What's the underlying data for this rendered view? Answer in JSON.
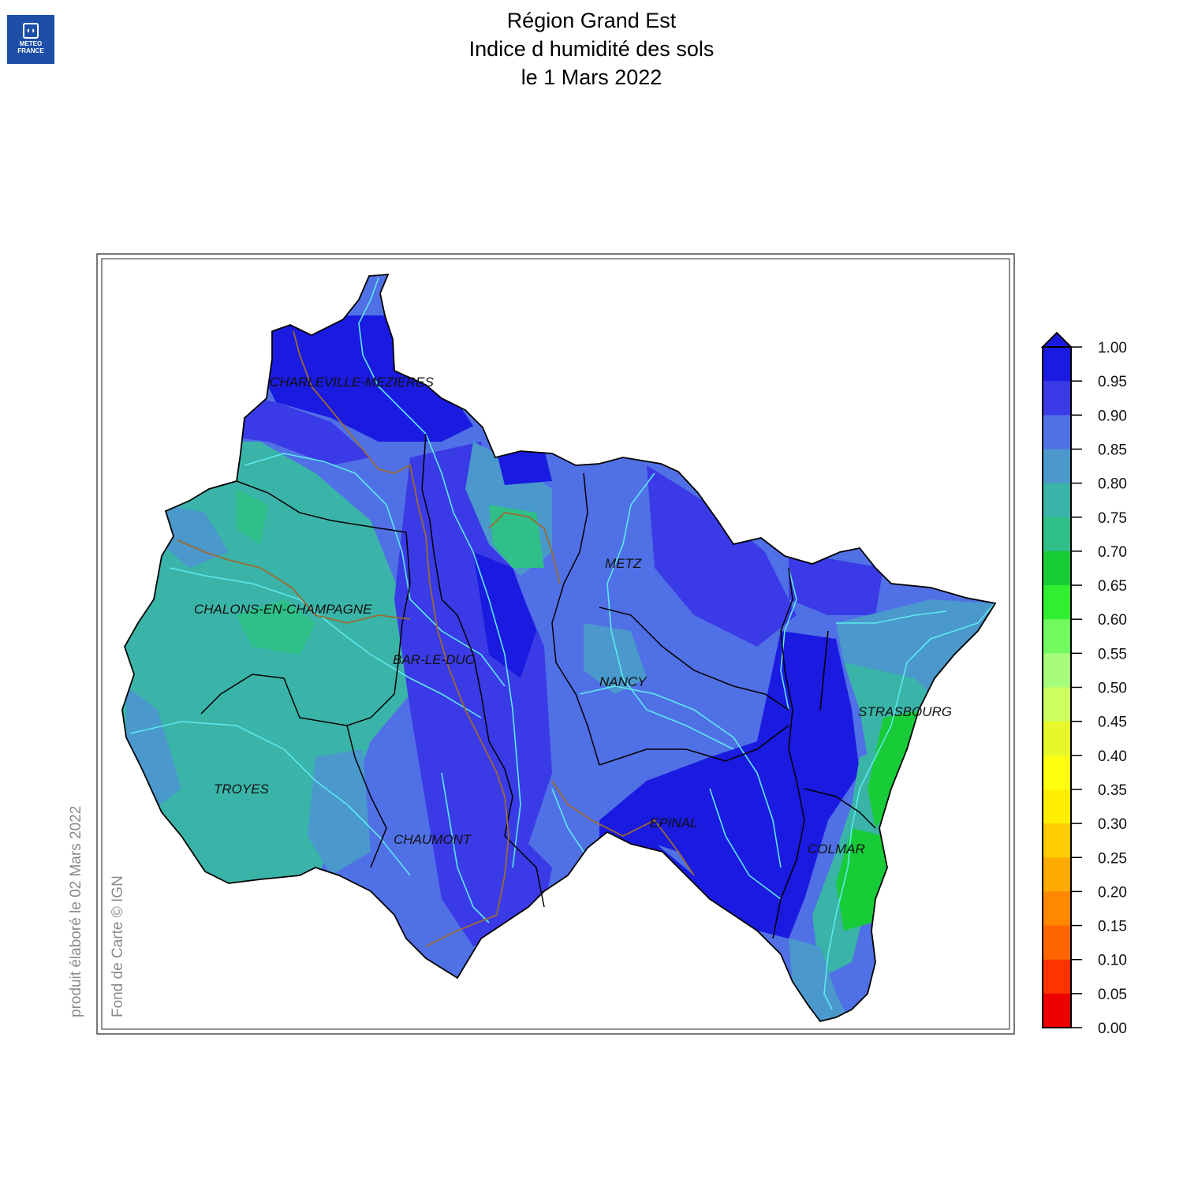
{
  "logo": {
    "line1": "METEO",
    "line2": "FRANCE"
  },
  "title": {
    "line1": "Région Grand Est",
    "line2": "Indice d humidité des sols",
    "line3": "le 1 Mars 2022"
  },
  "notes": {
    "produced": "produit élaboré le 02 Mars 2022",
    "basemap": "Fond de Carte © IGN"
  },
  "cities": [
    {
      "name": "CHARLEVILLE-MEZIERES"
    },
    {
      "name": "METZ"
    },
    {
      "name": "CHALONS-EN-CHAMPAGNE"
    },
    {
      "name": "BAR-LE-DUC"
    },
    {
      "name": "NANCY"
    },
    {
      "name": "STRASBOURG"
    },
    {
      "name": "TROYES"
    },
    {
      "name": "EPINAL"
    },
    {
      "name": "CHAUMONT"
    },
    {
      "name": "COLMAR"
    }
  ],
  "legend": {
    "ticks": [
      "1.00",
      "0.95",
      "0.90",
      "0.85",
      "0.80",
      "0.75",
      "0.70",
      "0.65",
      "0.60",
      "0.55",
      "0.50",
      "0.45",
      "0.40",
      "0.35",
      "0.30",
      "0.25",
      "0.20",
      "0.15",
      "0.10",
      "0.05",
      "0.00"
    ],
    "colors": [
      "#1a1ae0",
      "#3a3ae6",
      "#5070e6",
      "#4a98cc",
      "#3ab4a8",
      "#2ec088",
      "#18cc38",
      "#30ee30",
      "#70fa60",
      "#a8fc7c",
      "#ccff60",
      "#e6f82a",
      "#ffff10",
      "#ffee00",
      "#ffcc00",
      "#ffaa00",
      "#ff8800",
      "#ff6600",
      "#ff3300",
      "#ee0000"
    ],
    "overflow_color": "#1a1ae0"
  }
}
